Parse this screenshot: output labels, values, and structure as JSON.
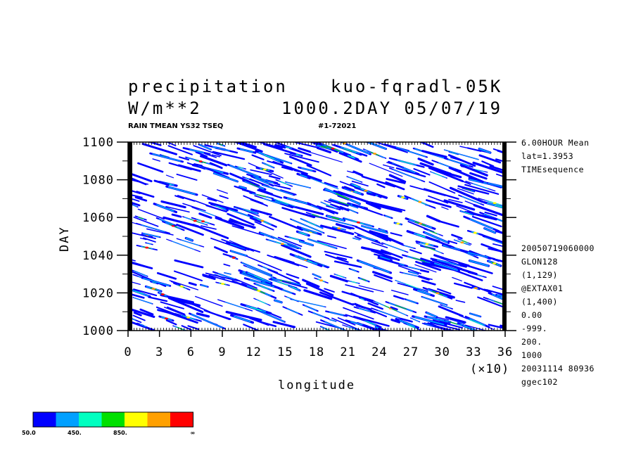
{
  "header": {
    "title_left": "precipitation",
    "title_right": "kuo-fqradl-05K",
    "units": "W/m**2",
    "time_label": "1000.2DAY 05/07/19",
    "subtitle_left": "RAIN TMEAN YS32 TSEQ",
    "subtitle_right": "#1-72021"
  },
  "side_info": {
    "top": [
      "6.00HOUR Mean",
      "lat=1.3953",
      "TIMEsequence"
    ],
    "bottom": [
      "20050719060000",
      "GLON128",
      "(1,129)",
      "@EXTAX01",
      "(1,400)",
      "0.00",
      "-999.",
      "200.",
      "1000",
      "20031114  80936",
      "ggec102"
    ]
  },
  "chart_data": {
    "type": "heatmap",
    "xlabel": "longitude",
    "ylabel": "DAY",
    "x_multiplier": "(×10)",
    "xlim": [
      0,
      36
    ],
    "ylim": [
      1000,
      1100
    ],
    "x_ticks": [
      "0",
      "3",
      "6",
      "9",
      "12",
      "15",
      "18",
      "21",
      "24",
      "27",
      "30",
      "33",
      "36"
    ],
    "y_ticks": [
      "1000",
      "1020",
      "1040",
      "1060",
      "1080",
      "1100"
    ],
    "grid": false,
    "colorbar": {
      "placement": "bottom-left",
      "colors": [
        "#0000ff",
        "#00a0ff",
        "#00ffc0",
        "#00e000",
        "#ffff00",
        "#ffa000",
        "#ff0000"
      ],
      "labels": [
        "50.0",
        "450.",
        "850.",
        "∞"
      ]
    },
    "description": "time-longitude precipitation streaks propagating westward"
  }
}
